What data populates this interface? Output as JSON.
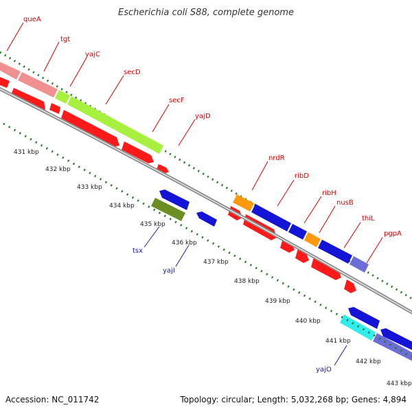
{
  "title": "Escherichia coli S88, complete genome",
  "footer": {
    "accession": "Accession: NC_011742",
    "topology": "Topology: circular; Length: 5,032,268 bp; Genes: 4,894"
  },
  "kbp_ticks": [
    "431 kbp",
    "432 kbp",
    "433 kbp",
    "434 kbp",
    "435 kbp",
    "436 kbp",
    "437 kbp",
    "438 kbp",
    "439 kbp",
    "440 kbp",
    "441 kbp",
    "442 kbp",
    "443 kbp"
  ],
  "gene_labels_forward": [
    "queA",
    "tgt",
    "yajC",
    "secD",
    "secF",
    "yajD",
    "nrdR",
    "ribD",
    "ribH",
    "nusB",
    "thiL",
    "pgpA"
  ],
  "gene_labels_reverse": [
    "tsx",
    "yajI",
    "yajO"
  ],
  "colors": {
    "label_forward": "#d40000",
    "label_reverse": "#1a1aa6",
    "backbone": "#8c8c8c",
    "gc_dots": "#1f7a1f",
    "cds_red": "#ff1a1a",
    "cds_blue": "#1414d6",
    "cds_pink": "#f09090",
    "cds_lime": "#a8f040",
    "cds_orange": "#ff9a10",
    "cds_olive": "#6b8e23",
    "cds_cyan": "#30ecec",
    "cds_lavender": "#6d6dd8"
  }
}
